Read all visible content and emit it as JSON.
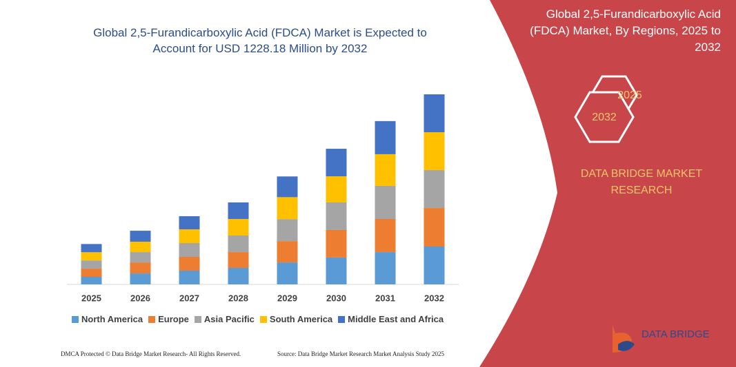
{
  "chart_data": {
    "type": "stacked-bar",
    "title": "Global 2,5-Furandicarboxylic Acid (FDCA) Market is Expected to Account for USD 1228.18 Million by 2032",
    "categories": [
      "2025",
      "2026",
      "2027",
      "2028",
      "2029",
      "2030",
      "2031",
      "2032"
    ],
    "series": [
      {
        "name": "North America",
        "color": "#5b9bd5",
        "values": [
          49,
          71,
          89,
          107,
          142,
          174,
          209,
          245
        ]
      },
      {
        "name": "Europe",
        "color": "#ed7d31",
        "values": [
          53,
          71,
          89,
          102,
          138,
          178,
          214,
          249
        ]
      },
      {
        "name": "Asia Pacific",
        "color": "#a5a5a5",
        "values": [
          53,
          67,
          89,
          107,
          142,
          178,
          214,
          245
        ]
      },
      {
        "name": "South America",
        "color": "#ffc000",
        "values": [
          53,
          67,
          89,
          107,
          142,
          169,
          205,
          245
        ]
      },
      {
        "name": "Middle East and Africa",
        "color": "#4472c4",
        "values": [
          53,
          71,
          85,
          107,
          134,
          178,
          214,
          245
        ]
      }
    ]
  },
  "panel": {
    "title": "Global 2,5-Furandicarboxylic Acid (FDCA) Market, By Regions, 2025 to 2032",
    "hex_back": "2025",
    "hex_front": "2032",
    "brand": "DATA BRIDGE MARKET RESEARCH",
    "logo": "DATA BRIDGE"
  },
  "footer": {
    "left": "DMCA Protected © Data Bridge Market Research- All Rights Reserved.",
    "right": "Source: Data Bridge Market Research Market Analysis Study 2025"
  }
}
